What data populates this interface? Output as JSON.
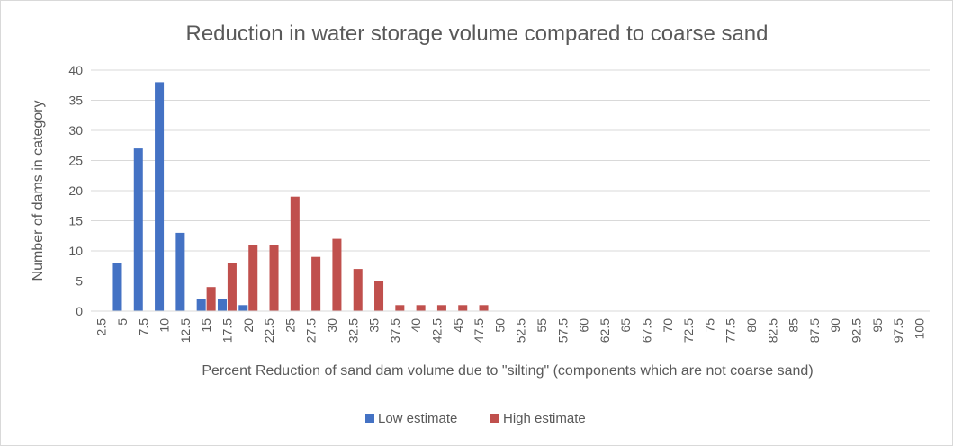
{
  "chart_data": {
    "type": "bar",
    "title": "Reduction  in water storage volume compared to coarse sand",
    "xlabel": "Percent Reduction of sand dam volume due to \"silting\" (components which are not coarse sand)",
    "ylabel": "Number of dams in category",
    "ylim": [
      0,
      40
    ],
    "yticks": [
      "0",
      "5",
      "10",
      "15",
      "20",
      "25",
      "30",
      "35",
      "40"
    ],
    "grid": true,
    "legend_position": "bottom",
    "categories": [
      "2.5",
      "5",
      "7.5",
      "10",
      "12.5",
      "15",
      "17.5",
      "20",
      "22.5",
      "25",
      "27.5",
      "30",
      "32.5",
      "35",
      "37.5",
      "40",
      "42.5",
      "45",
      "47.5",
      "50",
      "52.5",
      "55",
      "57.5",
      "60",
      "62.5",
      "65",
      "67.5",
      "70",
      "72.5",
      "75",
      "77.5",
      "80",
      "82.5",
      "85",
      "87.5",
      "90",
      "92.5",
      "95",
      "97.5",
      "100"
    ],
    "series": [
      {
        "name": "Low estimate",
        "color": "#4472c4",
        "values": [
          0,
          8,
          27,
          38,
          13,
          2,
          2,
          1,
          0,
          0,
          0,
          0,
          0,
          0,
          0,
          0,
          0,
          0,
          0,
          0,
          0,
          0,
          0,
          0,
          0,
          0,
          0,
          0,
          0,
          0,
          0,
          0,
          0,
          0,
          0,
          0,
          0,
          0,
          0,
          0
        ]
      },
      {
        "name": "High estimate",
        "color": "#c0504d",
        "values": [
          0,
          0,
          0,
          0,
          0,
          4,
          8,
          11,
          11,
          19,
          9,
          12,
          7,
          5,
          1,
          1,
          1,
          1,
          1,
          0,
          0,
          0,
          0,
          0,
          0,
          0,
          0,
          0,
          0,
          0,
          0,
          0,
          0,
          0,
          0,
          0,
          0,
          0,
          0,
          0
        ]
      }
    ]
  }
}
